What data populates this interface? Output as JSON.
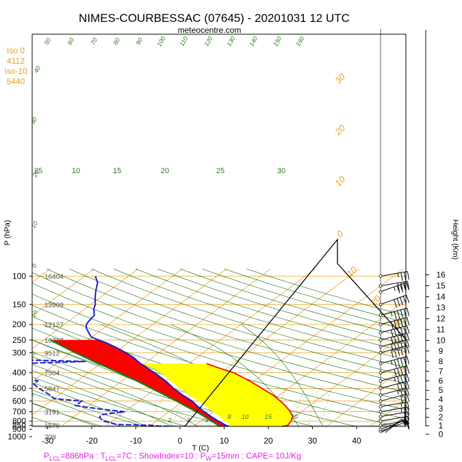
{
  "chart_data": {
    "type": "skew-t",
    "title": "NIMES-COURBESSAC (07645) - 20201031 12 UTC",
    "subtitle": "meteocentre.com",
    "ylabel": "P (hPa)",
    "xlabel": "T (C)",
    "height_label": "Height (Km)",
    "pressure_ticks": [
      100,
      150,
      200,
      250,
      300,
      400,
      500,
      600,
      700,
      800,
      850,
      900,
      1000
    ],
    "temperature_ticks": [
      -30,
      -20,
      -10,
      0,
      10,
      20,
      30,
      40
    ],
    "height_ticks": [
      0,
      1,
      2,
      3,
      4,
      5,
      6,
      7,
      8,
      9,
      10,
      11,
      12,
      13,
      14,
      15,
      16
    ],
    "geopotential_labels": [
      {
        "p": 100,
        "z": "16404"
      },
      {
        "p": 150,
        "z": "13909"
      },
      {
        "p": 200,
        "z": "12127"
      },
      {
        "p": 250,
        "z": "10717"
      },
      {
        "p": 300,
        "z": "9512"
      },
      {
        "p": 400,
        "z": "7504"
      },
      {
        "p": 500,
        "z": "5847"
      },
      {
        "p": 700,
        "z": "3191"
      },
      {
        "p": 850,
        "z": "1579"
      },
      {
        "p": 1000,
        "z": "209"
      }
    ],
    "iso_labels": [
      "Iso 0",
      "4112",
      "Iso-10",
      "5440"
    ],
    "mixing_ratio_labels": [
      "2",
      "3",
      "5",
      "8",
      "10",
      "15",
      "20",
      "25",
      "30"
    ],
    "isotherm_labels": [
      "-20",
      "-10",
      "0",
      "10",
      "20",
      "30"
    ],
    "dry_adiabat_labels": [
      "0",
      "10",
      "20",
      "30",
      "40",
      "50",
      "60",
      "70",
      "80",
      "90",
      "100",
      "110",
      "120",
      "130",
      "140",
      "150",
      "160"
    ],
    "moist_adiabat_labels": [
      "10",
      "15",
      "20",
      "25",
      "30"
    ],
    "temperature_profile": [
      [
        1000,
        13.5
      ],
      [
        985,
        12.5
      ],
      [
        960,
        11.0
      ],
      [
        940,
        10.5
      ],
      [
        925,
        13.0
      ],
      [
        910,
        11.0
      ],
      [
        880,
        9.0
      ],
      [
        850,
        7.0
      ],
      [
        800,
        4.0
      ],
      [
        750,
        1.0
      ],
      [
        700,
        -2.0
      ],
      [
        650,
        -5.0
      ],
      [
        600,
        -8.0
      ],
      [
        550,
        -12.0
      ],
      [
        500,
        -16.0
      ],
      [
        450,
        -20.0
      ],
      [
        400,
        -25.0
      ],
      [
        350,
        -31.0
      ],
      [
        320,
        -34.5
      ],
      [
        300,
        -37.5
      ],
      [
        280,
        -41.0
      ],
      [
        260,
        -45.0
      ],
      [
        250,
        -47.5
      ],
      [
        240,
        -50.0
      ],
      [
        225,
        -52.0
      ],
      [
        210,
        -54.0
      ],
      [
        200,
        -55.0
      ],
      [
        190,
        -55.5
      ],
      [
        175,
        -56.0
      ],
      [
        160,
        -58.0
      ],
      [
        150,
        -59.0
      ],
      [
        140,
        -60.5
      ],
      [
        130,
        -62.0
      ],
      [
        120,
        -63.5
      ],
      [
        110,
        -65.0
      ],
      [
        100,
        -67.5
      ]
    ],
    "dewpoint_profile": [
      [
        1000,
        12.0
      ],
      [
        985,
        11.5
      ],
      [
        960,
        10.0
      ],
      [
        940,
        9.0
      ],
      [
        925,
        8.0
      ],
      [
        915,
        -3.5
      ],
      [
        900,
        -6.0
      ],
      [
        880,
        4.0
      ],
      [
        860,
        -8.0
      ],
      [
        850,
        -10.0
      ],
      [
        840,
        -18.0
      ],
      [
        820,
        -20.0
      ],
      [
        800,
        -22.0
      ],
      [
        760,
        -24.0
      ],
      [
        730,
        -24.5
      ],
      [
        700,
        -20.0
      ],
      [
        670,
        -27.0
      ],
      [
        640,
        -33.0
      ],
      [
        600,
        -33.0
      ],
      [
        580,
        -40.0
      ],
      [
        550,
        -42.0
      ],
      [
        500,
        -46.5
      ],
      [
        470,
        -49.0
      ],
      [
        450,
        -49.0
      ],
      [
        420,
        -55.0
      ],
      [
        400,
        -58.0
      ],
      [
        380,
        -59.5
      ],
      [
        360,
        -62.0
      ],
      [
        350,
        -58.0
      ],
      [
        340,
        -44.0
      ],
      [
        330,
        -64.0
      ],
      [
        310,
        -64.0
      ],
      [
        290,
        -66.0
      ],
      [
        270,
        -68.0
      ],
      [
        250,
        -70.5
      ],
      [
        240,
        -70.0
      ],
      [
        220,
        -71.0
      ],
      [
        200,
        -72.5
      ],
      [
        180,
        -76.0
      ],
      [
        160,
        -78.0
      ],
      [
        140,
        -80.0
      ],
      [
        120,
        -84.0
      ],
      [
        100,
        -86.5
      ]
    ],
    "parcel_profile": [
      [
        1000,
        13.5
      ],
      [
        950,
        9.0
      ],
      [
        886,
        7.0
      ],
      [
        850,
        5.2
      ],
      [
        800,
        2.5
      ],
      [
        750,
        -0.5
      ],
      [
        700,
        -3.8
      ],
      [
        650,
        -7.5
      ],
      [
        600,
        -11.5
      ],
      [
        550,
        -16.0
      ],
      [
        500,
        -21.0
      ],
      [
        450,
        -26.5
      ],
      [
        400,
        -33.0
      ],
      [
        350,
        -40.5
      ],
      [
        300,
        -49.0
      ],
      [
        250,
        -58.5
      ]
    ],
    "shading": {
      "negative_area_color": "#ff0000",
      "positive_area_color": "#ffff00"
    },
    "wind_barbs": [
      {
        "p": 1000,
        "dir": 230,
        "kt": 5
      },
      {
        "p": 950,
        "dir": 240,
        "kt": 10
      },
      {
        "p": 925,
        "dir": 250,
        "kt": 10
      },
      {
        "p": 900,
        "dir": 250,
        "kt": 15
      },
      {
        "p": 850,
        "dir": 260,
        "kt": 15
      },
      {
        "p": 800,
        "dir": 260,
        "kt": 20
      },
      {
        "p": 750,
        "dir": 260,
        "kt": 20
      },
      {
        "p": 700,
        "dir": 260,
        "kt": 25
      },
      {
        "p": 650,
        "dir": 260,
        "kt": 25
      },
      {
        "p": 600,
        "dir": 255,
        "kt": 30
      },
      {
        "p": 550,
        "dir": 255,
        "kt": 35
      },
      {
        "p": 500,
        "dir": 255,
        "kt": 40
      },
      {
        "p": 450,
        "dir": 255,
        "kt": 45
      },
      {
        "p": 400,
        "dir": 255,
        "kt": 50
      },
      {
        "p": 350,
        "dir": 255,
        "kt": 55
      },
      {
        "p": 300,
        "dir": 255,
        "kt": 60
      },
      {
        "p": 275,
        "dir": 255,
        "kt": 60
      },
      {
        "p": 250,
        "dir": 255,
        "kt": 60
      },
      {
        "p": 225,
        "dir": 255,
        "kt": 60
      },
      {
        "p": 200,
        "dir": 255,
        "kt": 60
      },
      {
        "p": 175,
        "dir": 255,
        "kt": 55
      },
      {
        "p": 150,
        "dir": 250,
        "kt": 50
      },
      {
        "p": 125,
        "dir": 250,
        "kt": 45
      },
      {
        "p": 115,
        "dir": 260,
        "kt": 40
      },
      {
        "p": 100,
        "dir": 260,
        "kt": 35
      }
    ],
    "footer": {
      "p_lcl": "P",
      "p_lcl_sub": "LCL",
      "p_lcl_val": "=886hPa : T",
      "t_lcl_sub": "LCL",
      "t_lcl_val": "=7C : ShowIndex=10 : P",
      "pw_sub": "W",
      "pw_val": "=15mm : CAPE= 10J/Kg"
    },
    "colors": {
      "temperature": "#1a1ad0",
      "dewpoint": "#1a1ad0",
      "parcel": "#1a7a1a",
      "isotherm": "#e8a020",
      "isobar": "#e8a020",
      "dry_adiabat": "#2a7a1a",
      "moist_adiabat": "#2a7a1a",
      "mixing_ratio": "#e8a020",
      "boundary": "#ff0000",
      "footer": "#e020e0"
    }
  }
}
